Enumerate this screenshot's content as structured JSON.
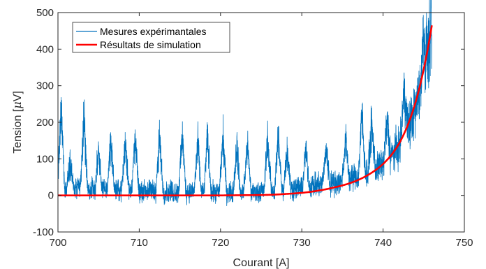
{
  "chart_data": {
    "type": "line",
    "title": "",
    "xlabel": "Courant [A]",
    "ylabel_prefix": "Tension [",
    "ylabel_symbol": "μ",
    "ylabel_suffix": "V]",
    "xlim": [
      700,
      750
    ],
    "ylim": [
      -100,
      500
    ],
    "xticks": [
      700,
      710,
      720,
      730,
      740,
      750
    ],
    "yticks": [
      -100,
      0,
      100,
      200,
      300,
      400,
      500
    ],
    "xtick_labels": [
      "700",
      "710",
      "720",
      "730",
      "740",
      "750"
    ],
    "ytick_labels": [
      "-100",
      "0",
      "100",
      "200",
      "300",
      "400",
      "500"
    ],
    "grid": false,
    "legend_placement": "top-left",
    "series": [
      {
        "name": "Mesures expérimantales",
        "color": "#0072BD",
        "baseline_points": [
          [
            700,
            15
          ],
          [
            710,
            10
          ],
          [
            720,
            5
          ],
          [
            725,
            8
          ],
          [
            730,
            18
          ],
          [
            735,
            35
          ],
          [
            738,
            55
          ],
          [
            740,
            80
          ],
          [
            742,
            130
          ],
          [
            743,
            175
          ],
          [
            744,
            230
          ],
          [
            745,
            320
          ],
          [
            746,
            430
          ]
        ],
        "spikes": [
          [
            700.4,
            290
          ],
          [
            701.5,
            120
          ],
          [
            703.2,
            265
          ],
          [
            705,
            150
          ],
          [
            706.5,
            195
          ],
          [
            708.3,
            185
          ],
          [
            709.5,
            190
          ],
          [
            712.5,
            195
          ],
          [
            715.3,
            205
          ],
          [
            717.2,
            180
          ],
          [
            718.4,
            200
          ],
          [
            720.3,
            200
          ],
          [
            722,
            170
          ],
          [
            723.3,
            175
          ],
          [
            725.8,
            200
          ],
          [
            727.1,
            205
          ],
          [
            728.2,
            160
          ],
          [
            730.5,
            150
          ],
          [
            733,
            155
          ],
          [
            735.4,
            185
          ],
          [
            737.4,
            265
          ],
          [
            738.6,
            225
          ],
          [
            740.5,
            225
          ],
          [
            742.6,
            325
          ],
          [
            745,
            480
          ]
        ]
      },
      {
        "name": "Résultats de simulation",
        "color": "#FF0000",
        "points": [
          [
            700,
            0
          ],
          [
            710,
            0
          ],
          [
            720,
            0
          ],
          [
            725,
            1
          ],
          [
            728,
            4
          ],
          [
            730,
            7
          ],
          [
            732,
            13
          ],
          [
            734,
            22
          ],
          [
            736,
            34
          ],
          [
            738,
            54
          ],
          [
            740,
            86
          ],
          [
            741,
            110
          ],
          [
            742,
            143
          ],
          [
            743,
            190
          ],
          [
            744,
            255
          ],
          [
            745,
            345
          ],
          [
            746,
            465
          ]
        ]
      }
    ]
  }
}
